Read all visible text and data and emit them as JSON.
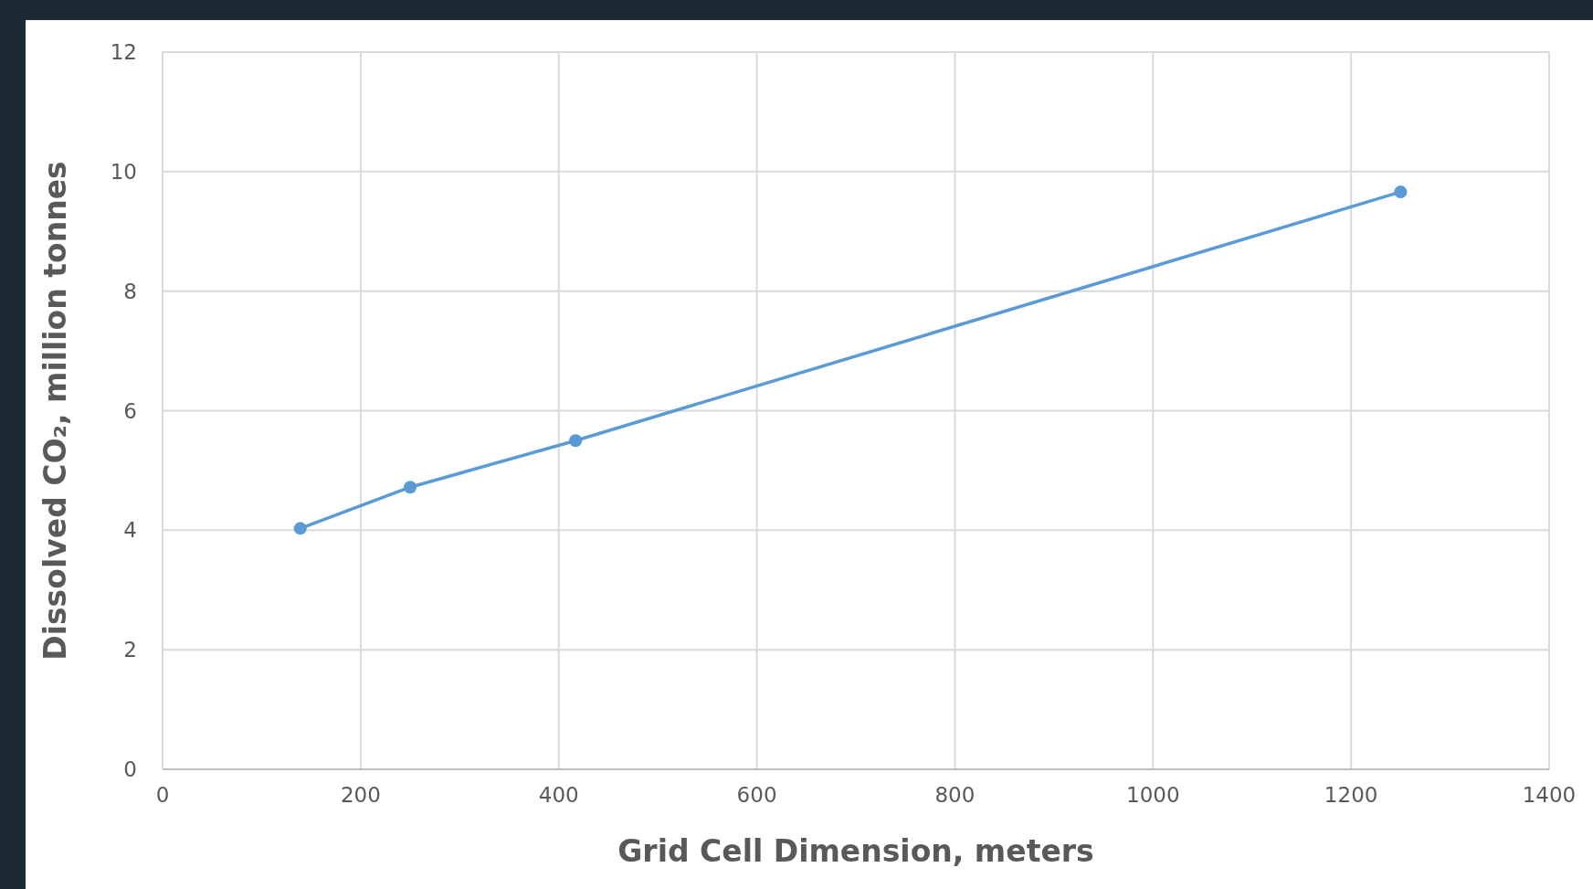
{
  "chart_data": {
    "type": "line",
    "xlabel": "Grid Cell Dimension, meters",
    "ylabel": "Dissolved CO₂, million tonnes",
    "x": [
      139,
      250,
      417,
      1250
    ],
    "series": [
      {
        "color": "#5b9bd5",
        "values": [
          4.03,
          4.72,
          5.5,
          9.66
        ]
      }
    ],
    "xlim": [
      0,
      1400
    ],
    "xticks": [
      0,
      200,
      400,
      600,
      800,
      1000,
      1200,
      1400
    ],
    "ylim": [
      0,
      12
    ],
    "yticks": [
      0,
      2,
      4,
      6,
      8,
      10,
      12
    ],
    "grid": true,
    "marker": "circle",
    "line_style": "solid"
  }
}
